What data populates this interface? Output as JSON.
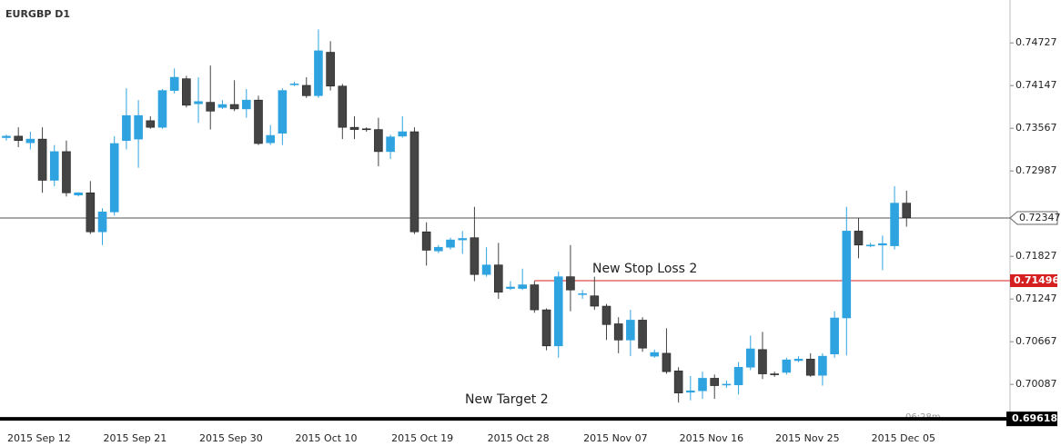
{
  "chart_data": {
    "type": "candlestick",
    "title": "EURGBP D1",
    "categories": [
      "2015 Sep 12",
      null,
      null,
      null,
      null,
      null,
      null,
      null,
      "2015 Sep 21",
      null,
      null,
      null,
      null,
      null,
      null,
      null,
      "2015 Sep 30",
      null,
      null,
      null,
      null,
      null,
      null,
      null,
      "2015 Oct 10",
      null,
      null,
      null,
      null,
      null,
      null,
      null,
      "2015 Oct 19",
      null,
      null,
      null,
      null,
      null,
      null,
      null,
      "2015 Oct 28",
      null,
      null,
      null,
      null,
      null,
      null,
      null,
      "2015 Nov 07",
      null,
      null,
      null,
      null,
      null,
      null,
      null,
      "2015 Nov 16",
      null,
      null,
      null,
      null,
      null,
      null,
      null,
      "2015 Nov 25",
      null,
      null,
      null,
      null,
      null,
      null,
      null,
      "2015 Dec 05",
      null,
      null,
      null
    ],
    "open": [
      0.7344,
      0.7346,
      0.7337,
      0.7342,
      0.7286,
      0.7325,
      0.7266,
      0.7269,
      0.7216,
      0.7243,
      0.734,
      0.7342,
      0.7367,
      0.7358,
      0.7408,
      0.7424,
      0.739,
      0.7392,
      0.7385,
      0.7389,
      0.7383,
      0.7395,
      0.7337,
      0.735,
      0.7416,
      0.7415,
      0.7401,
      0.746,
      0.7414,
      0.7358,
      0.7356,
      0.7355,
      0.7325,
      0.7346,
      0.7352,
      0.7216,
      0.719,
      0.7195,
      0.7205,
      0.7208,
      0.7158,
      0.7171,
      0.7139,
      0.7139,
      0.7144,
      0.711,
      0.7061,
      0.7155,
      0.7131,
      0.7129,
      0.7115,
      0.7091,
      0.7069,
      0.7096,
      0.7047,
      0.7051,
      0.7027,
      0.6998,
      0.7,
      0.7017,
      0.7008,
      0.7008,
      0.7032,
      0.7056,
      0.7023,
      0.7025,
      0.7041,
      0.7043,
      0.7021,
      0.705,
      0.7099,
      0.7217,
      0.7197,
      0.7198,
      0.7197,
      0.7255
    ],
    "high": [
      0.7348,
      0.7358,
      0.7352,
      0.7358,
      0.7334,
      0.734,
      0.727,
      0.7285,
      0.7248,
      0.7346,
      0.7411,
      0.7395,
      0.7373,
      0.741,
      0.7438,
      0.7428,
      0.7426,
      0.7442,
      0.7395,
      0.7422,
      0.741,
      0.7401,
      0.7361,
      0.7411,
      0.742,
      0.7426,
      0.7491,
      0.7475,
      0.7417,
      0.7373,
      0.7358,
      0.7371,
      0.7348,
      0.7373,
      0.7358,
      0.7229,
      0.7198,
      0.7208,
      0.7217,
      0.725,
      0.7195,
      0.7201,
      0.7149,
      0.7166,
      0.7149,
      0.7112,
      0.7162,
      0.7198,
      0.7137,
      0.7155,
      0.7118,
      0.71,
      0.711,
      0.71,
      0.7056,
      0.7085,
      0.7032,
      0.702,
      0.7026,
      0.7022,
      0.7014,
      0.7039,
      0.7075,
      0.708,
      0.7026,
      0.7045,
      0.7047,
      0.7051,
      0.7051,
      0.7108,
      0.725,
      0.7235,
      0.7201,
      0.7211,
      0.7278,
      0.7272
    ],
    "low": [
      0.734,
      0.7331,
      0.7328,
      0.7269,
      0.7278,
      0.7264,
      0.7264,
      0.7213,
      0.7198,
      0.7238,
      0.7328,
      0.7303,
      0.7356,
      0.7356,
      0.7404,
      0.7385,
      0.7364,
      0.7355,
      0.7383,
      0.738,
      0.7371,
      0.7334,
      0.7334,
      0.7334,
      0.7414,
      0.7398,
      0.7398,
      0.7408,
      0.7342,
      0.7342,
      0.7352,
      0.7305,
      0.7315,
      0.7344,
      0.7213,
      0.717,
      0.7187,
      0.7192,
      0.7186,
      0.7149,
      0.7155,
      0.7125,
      0.7137,
      0.7137,
      0.7106,
      0.7055,
      0.7045,
      0.7108,
      0.7125,
      0.711,
      0.7069,
      0.7051,
      0.7047,
      0.7053,
      0.7045,
      0.7023,
      0.6984,
      0.6987,
      0.6989,
      0.6989,
      0.7004,
      0.6995,
      0.7028,
      0.7016,
      0.7019,
      0.7022,
      0.7039,
      0.7019,
      0.7007,
      0.7045,
      0.7048,
      0.718,
      0.7195,
      0.7164,
      0.7192,
      0.7223
    ],
    "close": [
      0.7346,
      0.734,
      0.7342,
      0.7286,
      0.7325,
      0.7269,
      0.7269,
      0.7216,
      0.7243,
      0.7336,
      0.7374,
      0.7374,
      0.7358,
      0.7408,
      0.7426,
      0.7388,
      0.7393,
      0.738,
      0.7389,
      0.7383,
      0.7395,
      0.7336,
      0.7347,
      0.7408,
      0.7417,
      0.7401,
      0.7462,
      0.7414,
      0.7358,
      0.7355,
      0.7355,
      0.7325,
      0.7345,
      0.7352,
      0.7216,
      0.7191,
      0.7195,
      0.7205,
      0.7207,
      0.7158,
      0.7171,
      0.7134,
      0.7141,
      0.7144,
      0.711,
      0.7061,
      0.7155,
      0.7137,
      0.7132,
      0.7115,
      0.709,
      0.7069,
      0.7096,
      0.7058,
      0.7052,
      0.7026,
      0.6997,
      0.7,
      0.7017,
      0.7007,
      0.7009,
      0.7032,
      0.7057,
      0.7023,
      0.7022,
      0.7042,
      0.7043,
      0.7021,
      0.7047,
      0.7099,
      0.7217,
      0.7198,
      0.7198,
      0.72,
      0.7255,
      0.7235
    ],
    "up_color": "#2ea3e0",
    "down_color": "#444444",
    "ylim": [
      0.6962,
      0.7531
    ],
    "yticks": [
      0.74727,
      0.74147,
      0.73567,
      0.72987,
      0.71827,
      0.71247,
      0.70667,
      0.70087
    ],
    "price_line": {
      "value": 0.72347,
      "color": "#555555"
    },
    "stop_line": {
      "value": 0.71496,
      "color": "#d42020"
    },
    "bottom_line": {
      "value": 0.69618,
      "color": "#000000"
    },
    "annotations": [
      "New Stop Loss 2",
      "New Target 2"
    ],
    "timer": "06:28m"
  }
}
